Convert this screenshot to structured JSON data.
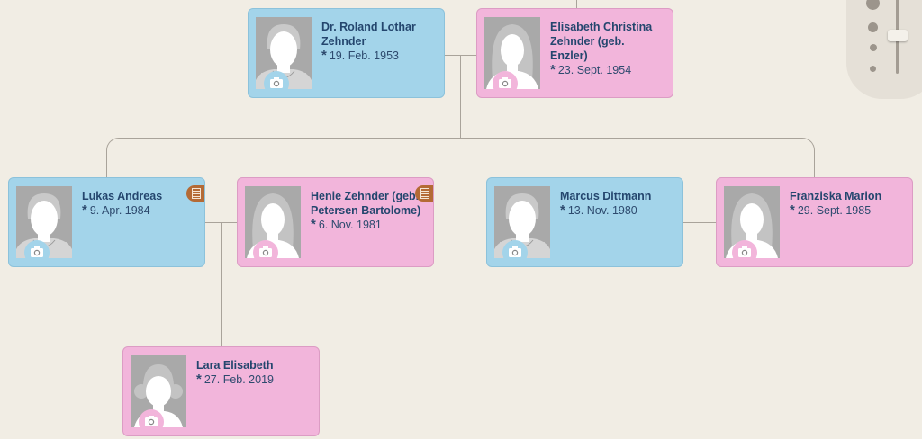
{
  "people": [
    {
      "id": "roland",
      "name": "Dr. Roland Lothar Zehnder",
      "birth": "19. Feb. 1953",
      "gender": "m",
      "note": false
    },
    {
      "id": "elisabeth",
      "name": "Elisabeth Christina Zehnder (geb. Enzler)",
      "birth": "23. Sept. 1954",
      "gender": "f",
      "note": false
    },
    {
      "id": "lukas",
      "name": "Lukas Andreas",
      "birth": "9. Apr. 1984",
      "gender": "m",
      "note": true
    },
    {
      "id": "henie",
      "name": "Henie Zehnder (geb. Petersen Bartolome)",
      "birth": "6. Nov. 1981",
      "gender": "f",
      "note": true
    },
    {
      "id": "marcus",
      "name": "Marcus Dittmann",
      "birth": "13. Nov. 1980",
      "gender": "m",
      "note": false
    },
    {
      "id": "franziska",
      "name": "Franziska Marion",
      "birth": "29. Sept. 1985",
      "gender": "f",
      "note": false
    },
    {
      "id": "lara",
      "name": "Lara Elisabeth",
      "birth": "27. Feb. 2019",
      "gender": "f",
      "child": true,
      "note": false
    }
  ],
  "birth_symbol": "*",
  "colors": {
    "male": "#a3d4ea",
    "female": "#f2b5db",
    "text": "#24466e",
    "background": "#f1ede4",
    "note": "#b46a35"
  },
  "zoom_slider": {
    "level": 0.75
  }
}
